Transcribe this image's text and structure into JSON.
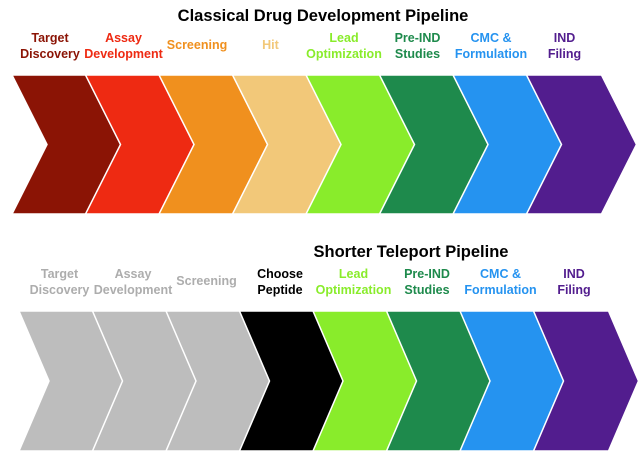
{
  "classical": {
    "title": "Classical Drug Development Pipeline",
    "stages": [
      {
        "line1": "Target",
        "line2": "Discovery",
        "color": "#8B1405"
      },
      {
        "line1": "Assay",
        "line2": "Development",
        "color": "#EE2A12"
      },
      {
        "line1": "Screening",
        "line2": "",
        "color": "#F0901E"
      },
      {
        "line1": "Hit",
        "line2": "",
        "color": "#F2C879"
      },
      {
        "line1": "Lead",
        "line2": "Optimization",
        "color": "#89EC2B"
      },
      {
        "line1": "Pre-IND",
        "line2": "Studies",
        "color": "#1E8A4C"
      },
      {
        "line1": "CMC &",
        "line2": "Formulation",
        "color": "#2593F0"
      },
      {
        "line1": "IND",
        "line2": "Filing",
        "color": "#521D8E"
      }
    ]
  },
  "teleport": {
    "title": "Shorter Teleport Pipeline",
    "stages": [
      {
        "line1": "Target",
        "line2": "Discovery",
        "color": "#BDBDBD",
        "text_color": "#ADADAD"
      },
      {
        "line1": "Assay",
        "line2": "Development",
        "color": "#BDBDBD",
        "text_color": "#ADADAD"
      },
      {
        "line1": "Screening",
        "line2": "",
        "color": "#BDBDBD",
        "text_color": "#ADADAD"
      },
      {
        "line1": "Choose",
        "line2": "Peptide",
        "color": "#000000",
        "text_color": "#000000"
      },
      {
        "line1": "Lead",
        "line2": "Optimization",
        "color": "#89EC2B"
      },
      {
        "line1": "Pre-IND",
        "line2": "Studies",
        "color": "#1E8A4C"
      },
      {
        "line1": "CMC &",
        "line2": "Formulation",
        "color": "#2593F0"
      },
      {
        "line1": "IND",
        "line2": "Filing",
        "color": "#521D8E"
      }
    ]
  }
}
